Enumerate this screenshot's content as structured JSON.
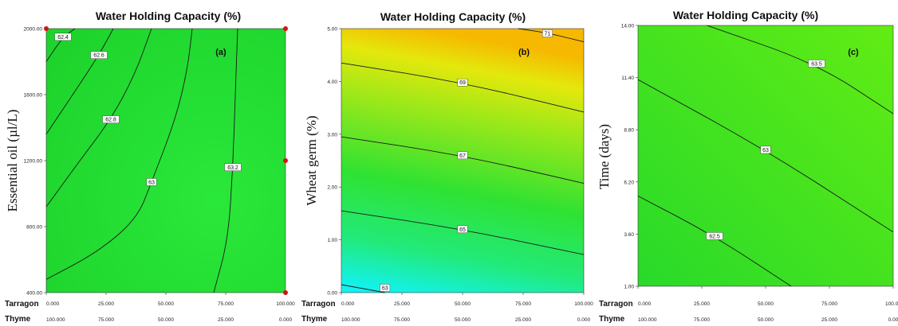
{
  "chart_data": [
    {
      "type": "contour",
      "panel_label": "(a)",
      "title": "Water Holding Capacity (%)",
      "ylabel": "Essential oil (µl/L)",
      "x_rows": [
        {
          "label": "Tarragon",
          "ticks": [
            "0.000",
            "25.000",
            "50.000",
            "75.000",
            "100.000"
          ]
        },
        {
          "label": "Thyme",
          "ticks": [
            "100.000",
            "75.000",
            "50.000",
            "25.000",
            "0.000"
          ]
        }
      ],
      "y_ticks": [
        "400.00",
        "800.00",
        "1200.00",
        "1600.00",
        "2000.00"
      ],
      "ylim": [
        400,
        2000
      ],
      "contours": [
        {
          "label": "62.4",
          "points": [
            [
              0,
              1800
            ],
            [
              7,
              1950
            ],
            [
              12,
              2000
            ]
          ]
        },
        {
          "label": "62.6",
          "points": [
            [
              0,
              1360
            ],
            [
              12,
              1620
            ],
            [
              22,
              1840
            ],
            [
              28,
              2000
            ]
          ]
        },
        {
          "label": "62.8",
          "points": [
            [
              0,
              920
            ],
            [
              14,
              1200
            ],
            [
              27,
              1450
            ],
            [
              37,
              1720
            ],
            [
              44,
              2000
            ]
          ]
        },
        {
          "label": "63",
          "points": [
            [
              0,
              480
            ],
            [
              22,
              650
            ],
            [
              38,
              850
            ],
            [
              44,
              1070
            ],
            [
              54,
              1450
            ],
            [
              59,
              1750
            ],
            [
              61,
              2000
            ]
          ]
        },
        {
          "label": "63.2",
          "points": [
            [
              70,
              400
            ],
            [
              76,
              720
            ],
            [
              78,
              1160
            ],
            [
              79,
              1600
            ],
            [
              80,
              2000
            ]
          ]
        }
      ],
      "markers": [
        [
          0,
          2000
        ],
        [
          100,
          2000
        ],
        [
          100,
          1200
        ],
        [
          100,
          400
        ]
      ],
      "colors": {
        "fill": "#22e030",
        "line": "#1a1a1a",
        "marker": "#e01010"
      }
    },
    {
      "type": "contour",
      "panel_label": "(b)",
      "title": "Water Holding Capacity (%)",
      "ylabel": "Wheat germ (%)",
      "x_rows": [
        {
          "label": "Tarragon",
          "ticks": [
            "0.000",
            "25.000",
            "50.000",
            "75.000",
            "100.000"
          ]
        },
        {
          "label": "Thyme",
          "ticks": [
            "100.000",
            "75.000",
            "50.000",
            "25.000",
            "0.000"
          ]
        }
      ],
      "y_ticks": [
        "0.00",
        "1.00",
        "2.00",
        "3.00",
        "4.00",
        "5.00"
      ],
      "ylim": [
        0,
        5
      ],
      "contours": [
        {
          "label": "63",
          "points": [
            [
              0,
              0.15
            ],
            [
              18,
              0
            ]
          ]
        },
        {
          "label": "65",
          "points": [
            [
              0,
              1.55
            ],
            [
              50,
              1.2
            ],
            [
              100,
              0.72
            ]
          ]
        },
        {
          "label": "67",
          "points": [
            [
              0,
              2.95
            ],
            [
              50,
              2.6
            ],
            [
              100,
              2.07
            ]
          ]
        },
        {
          "label": "69",
          "points": [
            [
              0,
              4.35
            ],
            [
              50,
              3.98
            ],
            [
              100,
              3.42
            ]
          ]
        },
        {
          "label": "71",
          "points": [
            [
              73,
              5.0
            ],
            [
              85,
              4.92
            ],
            [
              100,
              4.75
            ]
          ]
        }
      ],
      "colors": {
        "bottom": "#18f0ee",
        "middle": "#2ee032",
        "upper": "#cfee10",
        "top": "#f8b000",
        "line": "#1a1a1a"
      }
    },
    {
      "type": "contour",
      "panel_label": "(c)",
      "title": "Water Holding Capacity (%)",
      "ylabel": "Time (days)",
      "x_rows": [
        {
          "label": "Tarragon",
          "ticks": [
            "0.000",
            "25.000",
            "50.000",
            "75.000",
            "100.00"
          ]
        },
        {
          "label": "Thyme",
          "ticks": [
            "100.000",
            "75.000",
            "50.000",
            "25.000",
            "0.00"
          ]
        }
      ],
      "y_ticks": [
        "1.00",
        "3.60",
        "6.20",
        "8.80",
        "11.40",
        "14.00"
      ],
      "ylim": [
        1,
        14
      ],
      "contours": [
        {
          "label": "63.5",
          "points": [
            [
              27,
              14
            ],
            [
              70,
              12.1
            ],
            [
              100,
              9.6
            ]
          ]
        },
        {
          "label": "63",
          "points": [
            [
              0,
              11.3
            ],
            [
              50,
              7.8
            ],
            [
              100,
              3.7
            ]
          ]
        },
        {
          "label": "62.5",
          "points": [
            [
              0,
              5.5
            ],
            [
              30,
              3.5
            ],
            [
              60,
              1
            ]
          ]
        }
      ],
      "colors": {
        "fill": "#3fe41a",
        "line": "#1a1a1a"
      }
    }
  ]
}
